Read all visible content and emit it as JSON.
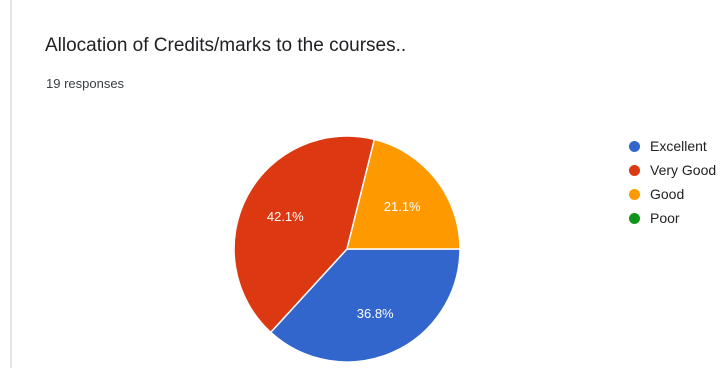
{
  "chart_data": {
    "type": "pie",
    "title": "Allocation of Credits/marks to the courses..",
    "subtitle": "19 responses",
    "legend_position": "right",
    "slices": [
      {
        "label": "Excellent",
        "value": 36.8,
        "display": "36.8%",
        "color": "#3366cc"
      },
      {
        "label": "Very Good",
        "value": 42.1,
        "display": "42.1%",
        "color": "#dc3912"
      },
      {
        "label": "Good",
        "value": 21.1,
        "display": "21.1%",
        "color": "#ff9900"
      },
      {
        "label": "Poor",
        "value": 0,
        "display": "",
        "color": "#109618"
      }
    ]
  }
}
